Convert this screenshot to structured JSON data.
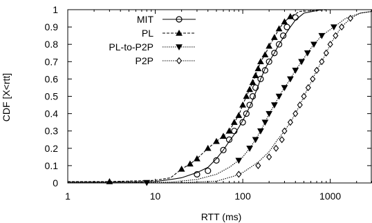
{
  "chart_data": {
    "type": "line",
    "title": "",
    "xlabel": "RTT (ms)",
    "ylabel": "CDF [X<rtt]",
    "x_scale": "log",
    "xlim": [
      1,
      3000
    ],
    "ylim": [
      0,
      1
    ],
    "x_ticks": [
      {
        "value": 1,
        "label": "1"
      },
      {
        "value": 10,
        "label": "10"
      },
      {
        "value": 100,
        "label": "100"
      },
      {
        "value": 1000,
        "label": "1000"
      }
    ],
    "y_ticks": [
      {
        "value": 0,
        "label": "0"
      },
      {
        "value": 0.1,
        "label": "0.1"
      },
      {
        "value": 0.2,
        "label": "0.2"
      },
      {
        "value": 0.3,
        "label": "0.3"
      },
      {
        "value": 0.4,
        "label": "0.4"
      },
      {
        "value": 0.5,
        "label": "0.5"
      },
      {
        "value": 0.6,
        "label": "0.6"
      },
      {
        "value": 0.7,
        "label": "0.7"
      },
      {
        "value": 0.8,
        "label": "0.8"
      },
      {
        "value": 0.9,
        "label": "0.9"
      },
      {
        "value": 1,
        "label": "1"
      }
    ],
    "grid": false,
    "legend_position": "top-left",
    "series": [
      {
        "name": "MIT",
        "line_style": "solid",
        "marker": "circle",
        "points": [
          [
            1,
            0.005
          ],
          [
            5,
            0.005
          ],
          [
            10,
            0.008
          ],
          [
            15,
            0.02
          ],
          [
            20,
            0.03
          ],
          [
            30,
            0.06
          ],
          [
            40,
            0.09
          ],
          [
            50,
            0.14
          ],
          [
            60,
            0.19
          ],
          [
            70,
            0.24
          ],
          [
            80,
            0.28
          ],
          [
            90,
            0.32
          ],
          [
            100,
            0.36
          ],
          [
            110,
            0.4
          ],
          [
            120,
            0.44
          ],
          [
            130,
            0.48
          ],
          [
            140,
            0.52
          ],
          [
            150,
            0.56
          ],
          [
            160,
            0.6
          ],
          [
            170,
            0.63
          ],
          [
            180,
            0.66
          ],
          [
            200,
            0.7
          ],
          [
            230,
            0.75
          ],
          [
            260,
            0.8
          ],
          [
            300,
            0.85
          ],
          [
            350,
            0.9
          ],
          [
            400,
            0.94
          ],
          [
            500,
            0.98
          ],
          [
            800,
            1.0
          ],
          [
            3000,
            1.0
          ]
        ],
        "markers": [
          [
            30,
            0.05
          ],
          [
            40,
            0.07
          ],
          [
            50,
            0.13
          ],
          [
            60,
            0.19
          ],
          [
            70,
            0.25
          ],
          [
            80,
            0.3
          ],
          [
            100,
            0.35
          ],
          [
            110,
            0.4
          ],
          [
            120,
            0.45
          ],
          [
            130,
            0.5
          ],
          [
            140,
            0.55
          ],
          [
            160,
            0.6
          ],
          [
            180,
            0.65
          ],
          [
            200,
            0.7
          ],
          [
            230,
            0.75
          ],
          [
            260,
            0.8
          ],
          [
            290,
            0.85
          ],
          [
            320,
            0.9
          ],
          [
            400,
            0.955
          ]
        ]
      },
      {
        "name": "PL",
        "line_style": "dashed",
        "marker": "triangle-up",
        "points": [
          [
            1,
            0.008
          ],
          [
            3,
            0.008
          ],
          [
            10,
            0.015
          ],
          [
            15,
            0.03
          ],
          [
            20,
            0.08
          ],
          [
            25,
            0.11
          ],
          [
            30,
            0.14
          ],
          [
            40,
            0.2
          ],
          [
            50,
            0.24
          ],
          [
            60,
            0.27
          ],
          [
            70,
            0.3
          ],
          [
            80,
            0.35
          ],
          [
            90,
            0.39
          ],
          [
            100,
            0.45
          ],
          [
            110,
            0.5
          ],
          [
            120,
            0.54
          ],
          [
            130,
            0.58
          ],
          [
            140,
            0.62
          ],
          [
            150,
            0.66
          ],
          [
            160,
            0.7
          ],
          [
            180,
            0.74
          ],
          [
            200,
            0.79
          ],
          [
            230,
            0.84
          ],
          [
            260,
            0.89
          ],
          [
            300,
            0.93
          ],
          [
            350,
            0.96
          ],
          [
            450,
            0.99
          ],
          [
            1000,
            1.0
          ],
          [
            3000,
            1.0
          ]
        ],
        "markers": [
          [
            3,
            0.008
          ],
          [
            20,
            0.08
          ],
          [
            25,
            0.11
          ],
          [
            30,
            0.14
          ],
          [
            40,
            0.2
          ],
          [
            50,
            0.24
          ],
          [
            60,
            0.27
          ],
          [
            70,
            0.3
          ],
          [
            80,
            0.35
          ],
          [
            90,
            0.39
          ],
          [
            100,
            0.45
          ],
          [
            110,
            0.5
          ],
          [
            120,
            0.54
          ],
          [
            130,
            0.58
          ],
          [
            140,
            0.62
          ],
          [
            150,
            0.66
          ],
          [
            160,
            0.7
          ],
          [
            180,
            0.74
          ],
          [
            200,
            0.79
          ],
          [
            230,
            0.84
          ],
          [
            260,
            0.89
          ],
          [
            300,
            0.93
          ],
          [
            350,
            0.96
          ]
        ]
      },
      {
        "name": "PL-to-P2P",
        "line_style": "dotted",
        "marker": "triangle-down",
        "points": [
          [
            1,
            0.001
          ],
          [
            5,
            0.001
          ],
          [
            8,
            0.002
          ],
          [
            15,
            0.005
          ],
          [
            30,
            0.02
          ],
          [
            50,
            0.05
          ],
          [
            70,
            0.09
          ],
          [
            90,
            0.13
          ],
          [
            100,
            0.15
          ],
          [
            120,
            0.2
          ],
          [
            140,
            0.25
          ],
          [
            160,
            0.3
          ],
          [
            180,
            0.35
          ],
          [
            200,
            0.4
          ],
          [
            230,
            0.45
          ],
          [
            260,
            0.5
          ],
          [
            300,
            0.55
          ],
          [
            350,
            0.6
          ],
          [
            400,
            0.65
          ],
          [
            470,
            0.7
          ],
          [
            550,
            0.75
          ],
          [
            650,
            0.8
          ],
          [
            800,
            0.85
          ],
          [
            1100,
            0.9
          ],
          [
            1500,
            0.95
          ],
          [
            2200,
            0.98
          ],
          [
            3000,
            0.99
          ]
        ],
        "markers": [
          [
            8,
            0.002
          ],
          [
            90,
            0.13
          ],
          [
            120,
            0.2
          ],
          [
            140,
            0.25
          ],
          [
            160,
            0.3
          ],
          [
            180,
            0.35
          ],
          [
            200,
            0.4
          ],
          [
            230,
            0.45
          ],
          [
            260,
            0.5
          ],
          [
            300,
            0.55
          ],
          [
            350,
            0.6
          ],
          [
            400,
            0.65
          ],
          [
            470,
            0.7
          ],
          [
            550,
            0.75
          ],
          [
            650,
            0.8
          ],
          [
            800,
            0.85
          ],
          [
            1100,
            0.9
          ]
        ]
      },
      {
        "name": "P2P",
        "line_style": "dotted",
        "marker": "diamond",
        "points": [
          [
            1,
            0.001
          ],
          [
            20,
            0.002
          ],
          [
            50,
            0.01
          ],
          [
            80,
            0.04
          ],
          [
            100,
            0.06
          ],
          [
            150,
            0.12
          ],
          [
            200,
            0.18
          ],
          [
            250,
            0.25
          ],
          [
            300,
            0.3
          ],
          [
            350,
            0.35
          ],
          [
            400,
            0.4
          ],
          [
            450,
            0.45
          ],
          [
            500,
            0.5
          ],
          [
            560,
            0.55
          ],
          [
            630,
            0.6
          ],
          [
            700,
            0.65
          ],
          [
            800,
            0.7
          ],
          [
            900,
            0.75
          ],
          [
            1000,
            0.8
          ],
          [
            1150,
            0.85
          ],
          [
            1350,
            0.9
          ],
          [
            1700,
            0.95
          ],
          [
            2200,
            0.98
          ],
          [
            3000,
            0.99
          ]
        ],
        "markers": [
          [
            90,
            0.05
          ],
          [
            150,
            0.1
          ],
          [
            200,
            0.15
          ],
          [
            240,
            0.2
          ],
          [
            280,
            0.25
          ],
          [
            300,
            0.3
          ],
          [
            350,
            0.35
          ],
          [
            400,
            0.4
          ],
          [
            450,
            0.45
          ],
          [
            500,
            0.5
          ],
          [
            560,
            0.55
          ],
          [
            630,
            0.6
          ],
          [
            700,
            0.65
          ],
          [
            800,
            0.7
          ],
          [
            900,
            0.75
          ],
          [
            1000,
            0.8
          ],
          [
            1150,
            0.85
          ],
          [
            1350,
            0.9
          ],
          [
            1700,
            0.95
          ]
        ]
      }
    ]
  }
}
